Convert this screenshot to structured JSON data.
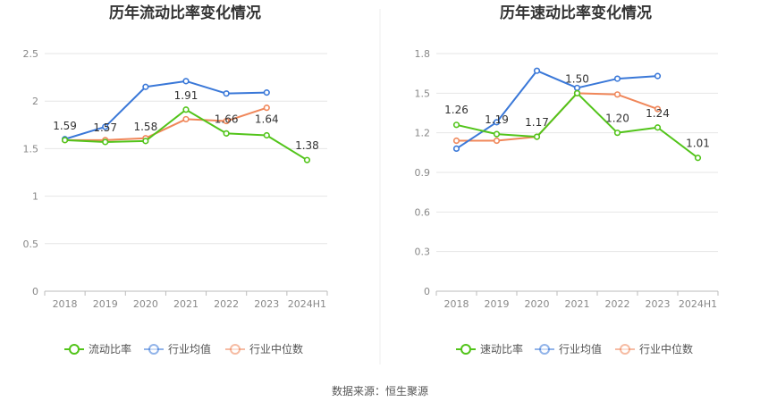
{
  "source_text": "数据来源：恒生聚源",
  "chart_data": [
    {
      "type": "line",
      "title": "历年流动比率变化情况",
      "categories": [
        "2018",
        "2019",
        "2020",
        "2021",
        "2022",
        "2023",
        "2024H1"
      ],
      "ylim": [
        0,
        2.5
      ],
      "yticks": [
        "0",
        "0.5",
        "1",
        "1.5",
        "2",
        "2.5"
      ],
      "grid": true,
      "legend_position": "bottom",
      "series": [
        {
          "name": "流动比率",
          "color": "#52c41a",
          "values": [
            1.59,
            1.57,
            1.58,
            1.91,
            1.66,
            1.64,
            1.38
          ],
          "labels": [
            "1.59",
            "1.57",
            "1.58",
            "1.91",
            "1.66",
            "1.64",
            "1.38"
          ]
        },
        {
          "name": "行业均值",
          "color": "#3a78d8",
          "values": [
            1.6,
            1.73,
            2.15,
            2.21,
            2.08,
            2.09,
            null
          ]
        },
        {
          "name": "行业中位数",
          "color": "#f0875a",
          "values": [
            1.59,
            1.59,
            1.61,
            1.81,
            1.79,
            1.93,
            null
          ]
        }
      ]
    },
    {
      "type": "line",
      "title": "历年速动比率变化情况",
      "categories": [
        "2018",
        "2019",
        "2020",
        "2021",
        "2022",
        "2023",
        "2024H1"
      ],
      "ylim": [
        0,
        1.8
      ],
      "yticks": [
        "0",
        "0.3",
        "0.6",
        "0.9",
        "1.2",
        "1.5",
        "1.8"
      ],
      "grid": true,
      "legend_position": "bottom",
      "series": [
        {
          "name": "速动比率",
          "color": "#52c41a",
          "values": [
            1.26,
            1.19,
            1.17,
            1.5,
            1.2,
            1.24,
            1.01
          ],
          "labels": [
            "1.26",
            "1.19",
            "1.17",
            "1.50",
            "1.20",
            "1.24",
            "1.01"
          ]
        },
        {
          "name": "行业均值",
          "color": "#3a78d8",
          "values": [
            1.08,
            1.28,
            1.67,
            1.54,
            1.61,
            1.63,
            null
          ]
        },
        {
          "name": "行业中位数",
          "color": "#f0875a",
          "values": [
            1.14,
            1.14,
            1.17,
            1.5,
            1.49,
            1.38,
            null
          ]
        }
      ]
    }
  ]
}
